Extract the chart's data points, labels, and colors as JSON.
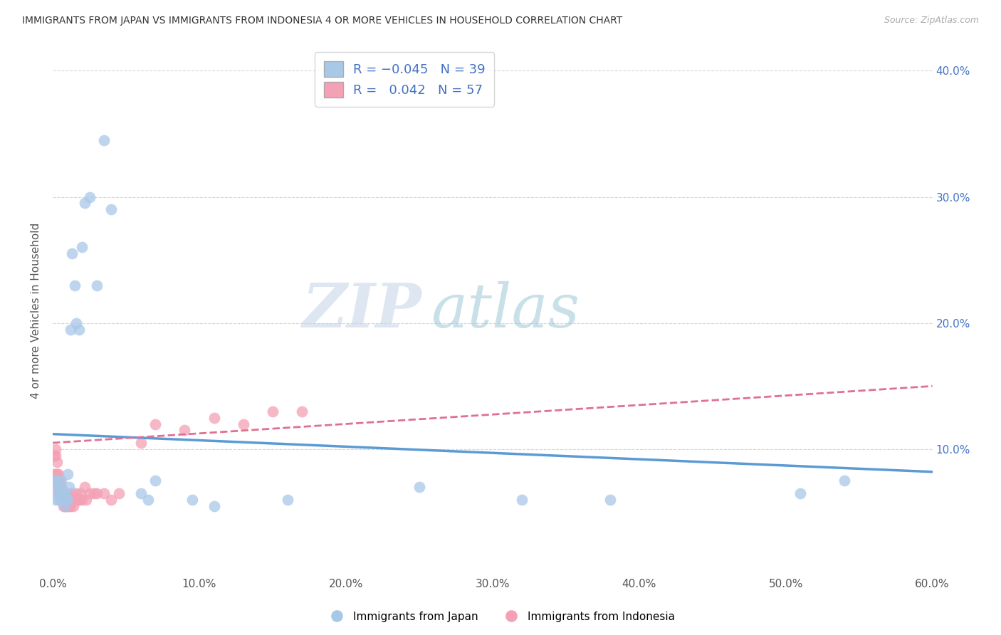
{
  "title": "IMMIGRANTS FROM JAPAN VS IMMIGRANTS FROM INDONESIA 4 OR MORE VEHICLES IN HOUSEHOLD CORRELATION CHART",
  "source": "Source: ZipAtlas.com",
  "ylabel": "4 or more Vehicles in Household",
  "xlabel": "",
  "xlim": [
    0.0,
    0.6
  ],
  "ylim": [
    0.0,
    0.42
  ],
  "xticks": [
    0.0,
    0.1,
    0.2,
    0.3,
    0.4,
    0.5,
    0.6
  ],
  "yticks": [
    0.0,
    0.1,
    0.2,
    0.3,
    0.4
  ],
  "xticklabels": [
    "0.0%",
    "10.0%",
    "20.0%",
    "30.0%",
    "40.0%",
    "50.0%",
    "60.0%"
  ],
  "yticklabels_right": [
    "",
    "10.0%",
    "20.0%",
    "30.0%",
    "40.0%"
  ],
  "japan_R": -0.045,
  "japan_N": 39,
  "indonesia_R": 0.042,
  "indonesia_N": 57,
  "japan_color": "#a8c8e8",
  "indonesia_color": "#f4a0b5",
  "japan_line_color": "#5b9bd5",
  "indonesia_line_color": "#e07090",
  "background_color": "#ffffff",
  "grid_color": "#cccccc",
  "watermark_zip": "ZIP",
  "watermark_atlas": "atlas",
  "japan_x": [
    0.001,
    0.002,
    0.002,
    0.003,
    0.004,
    0.004,
    0.005,
    0.005,
    0.006,
    0.006,
    0.007,
    0.008,
    0.008,
    0.009,
    0.01,
    0.01,
    0.011,
    0.012,
    0.013,
    0.015,
    0.016,
    0.018,
    0.02,
    0.022,
    0.025,
    0.03,
    0.035,
    0.04,
    0.06,
    0.065,
    0.07,
    0.095,
    0.11,
    0.16,
    0.25,
    0.32,
    0.38,
    0.51,
    0.54
  ],
  "japan_y": [
    0.075,
    0.06,
    0.075,
    0.065,
    0.06,
    0.07,
    0.065,
    0.07,
    0.06,
    0.075,
    0.065,
    0.055,
    0.065,
    0.06,
    0.08,
    0.06,
    0.07,
    0.195,
    0.255,
    0.23,
    0.2,
    0.195,
    0.26,
    0.295,
    0.3,
    0.23,
    0.345,
    0.29,
    0.065,
    0.06,
    0.075,
    0.06,
    0.055,
    0.06,
    0.07,
    0.06,
    0.06,
    0.065,
    0.075
  ],
  "indonesia_x": [
    0.001,
    0.001,
    0.002,
    0.002,
    0.002,
    0.003,
    0.003,
    0.003,
    0.004,
    0.004,
    0.004,
    0.005,
    0.005,
    0.005,
    0.006,
    0.006,
    0.006,
    0.007,
    0.007,
    0.007,
    0.008,
    0.008,
    0.008,
    0.009,
    0.009,
    0.009,
    0.01,
    0.01,
    0.01,
    0.011,
    0.011,
    0.012,
    0.012,
    0.013,
    0.013,
    0.014,
    0.015,
    0.016,
    0.017,
    0.018,
    0.019,
    0.02,
    0.022,
    0.023,
    0.025,
    0.028,
    0.03,
    0.035,
    0.04,
    0.045,
    0.06,
    0.07,
    0.09,
    0.11,
    0.13,
    0.15,
    0.17
  ],
  "indonesia_y": [
    0.095,
    0.08,
    0.095,
    0.08,
    0.1,
    0.08,
    0.09,
    0.07,
    0.08,
    0.065,
    0.075,
    0.065,
    0.07,
    0.075,
    0.06,
    0.065,
    0.07,
    0.06,
    0.055,
    0.065,
    0.055,
    0.06,
    0.065,
    0.06,
    0.055,
    0.06,
    0.06,
    0.055,
    0.065,
    0.055,
    0.06,
    0.055,
    0.06,
    0.06,
    0.065,
    0.055,
    0.06,
    0.065,
    0.06,
    0.06,
    0.065,
    0.06,
    0.07,
    0.06,
    0.065,
    0.065,
    0.065,
    0.065,
    0.06,
    0.065,
    0.105,
    0.12,
    0.115,
    0.125,
    0.12,
    0.13,
    0.13
  ],
  "japan_trend_x": [
    0.0,
    0.6
  ],
  "japan_trend_y": [
    0.112,
    0.082
  ],
  "indonesia_trend_x": [
    0.0,
    0.6
  ],
  "indonesia_trend_y": [
    0.105,
    0.15
  ]
}
